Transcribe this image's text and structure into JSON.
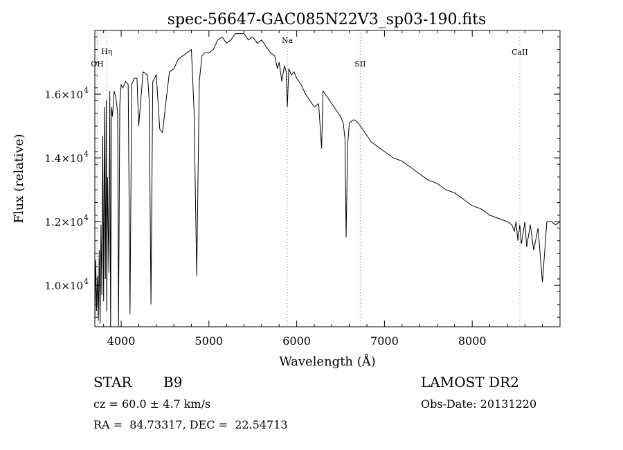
{
  "chart_data": {
    "type": "line",
    "title": "spec-56647-GAC085N22V3_sp03-190.fits",
    "xlabel": "Wavelength (Å)",
    "ylabel": "Flux (relative)",
    "xlim": [
      3700,
      9000
    ],
    "ylim": [
      8700,
      18000
    ],
    "x_ticks": [
      4000,
      5000,
      6000,
      7000,
      8000
    ],
    "x_tick_labels": [
      "4000",
      "5000",
      "6000",
      "7000",
      "8000"
    ],
    "y_ticks": [
      10000,
      12000,
      14000,
      16000
    ],
    "y_tick_labels": [
      "1.0×10",
      "1.2×10",
      "1.4×10",
      "1.6×10"
    ],
    "y_tick_exponent": "4",
    "grid": false,
    "line_color": "#000000",
    "marker_color": "#e05a5a",
    "markers": [
      {
        "label": "OH",
        "x": 3728
      },
      {
        "label": "Hη",
        "x": 3836
      },
      {
        "label": "Na",
        "x": 5893
      },
      {
        "label": "SII",
        "x": 6724
      },
      {
        "label": "CaII",
        "x": 8542
      }
    ],
    "series": [
      {
        "x": [
          3700,
          3710,
          3720,
          3730,
          3740,
          3750,
          3760,
          3770,
          3780,
          3790,
          3800,
          3810,
          3820,
          3830,
          3836,
          3845,
          3860,
          3870,
          3880,
          3889,
          3900,
          3920,
          3940,
          3960,
          3970,
          3985,
          4000,
          4020,
          4050,
          4080,
          4101,
          4120,
          4150,
          4180,
          4200,
          4250,
          4300,
          4320,
          4340,
          4360,
          4400,
          4440,
          4471,
          4500,
          4550,
          4600,
          4650,
          4700,
          4750,
          4800,
          4830,
          4861,
          4890,
          4920,
          4950,
          5000,
          5050,
          5100,
          5150,
          5200,
          5250,
          5300,
          5350,
          5400,
          5450,
          5500,
          5550,
          5600,
          5650,
          5700,
          5750,
          5780,
          5800,
          5830,
          5860,
          5880,
          5893,
          5910,
          5940,
          5970,
          6000,
          6050,
          6100,
          6150,
          6200,
          6250,
          6284,
          6300,
          6350,
          6400,
          6450,
          6500,
          6530,
          6550,
          6563,
          6580,
          6600,
          6650,
          6700,
          6750,
          6800,
          6850,
          6900,
          6950,
          7000,
          7100,
          7200,
          7300,
          7400,
          7500,
          7600,
          7700,
          7800,
          7900,
          8000,
          8100,
          8200,
          8300,
          8400,
          8450,
          8480,
          8498,
          8520,
          8542,
          8560,
          8600,
          8620,
          8662,
          8700,
          8750,
          8800,
          8850,
          8900,
          8950,
          9000
        ],
        "y": [
          8800,
          10800,
          9200,
          10300,
          8900,
          11100,
          8800,
          11900,
          9700,
          14700,
          9500,
          15600,
          10200,
          15800,
          9200,
          13400,
          10400,
          16100,
          8700,
          15600,
          15300,
          16100,
          15900,
          15400,
          8700,
          15700,
          16300,
          16200,
          16400,
          16300,
          9100,
          16300,
          16500,
          16500,
          15000,
          16700,
          16600,
          15800,
          9400,
          16400,
          16600,
          14900,
          14800,
          15500,
          16700,
          16800,
          17100,
          17200,
          17300,
          17400,
          15500,
          10300,
          16400,
          17200,
          17300,
          17300,
          17400,
          17700,
          17800,
          17600,
          17700,
          17900,
          17900,
          17900,
          17700,
          17800,
          17600,
          17700,
          17500,
          17300,
          17200,
          16800,
          17000,
          16400,
          16900,
          16700,
          15600,
          16800,
          16600,
          16700,
          16500,
          16300,
          16000,
          15800,
          15600,
          15700,
          14300,
          16100,
          15900,
          15700,
          15500,
          15300,
          15100,
          14600,
          11500,
          14400,
          15100,
          15200,
          15100,
          14900,
          14700,
          14500,
          14400,
          14300,
          14200,
          14000,
          13900,
          13700,
          13500,
          13300,
          13200,
          13000,
          12900,
          12700,
          12500,
          12400,
          12200,
          12100,
          12000,
          11900,
          11700,
          12000,
          11400,
          11900,
          11300,
          12000,
          11200,
          11900,
          11100,
          11800,
          10100,
          12000,
          12000,
          11900,
          12000
        ]
      }
    ]
  },
  "info": {
    "class_label": "STAR",
    "subclass": "B9",
    "cz": "cz = 60.0 ± 4.7 km/s",
    "coords": "RA =  84.73317, DEC =  22.54713",
    "survey": "LAMOST DR2",
    "obs_date": "Obs-Date: 20131220"
  }
}
